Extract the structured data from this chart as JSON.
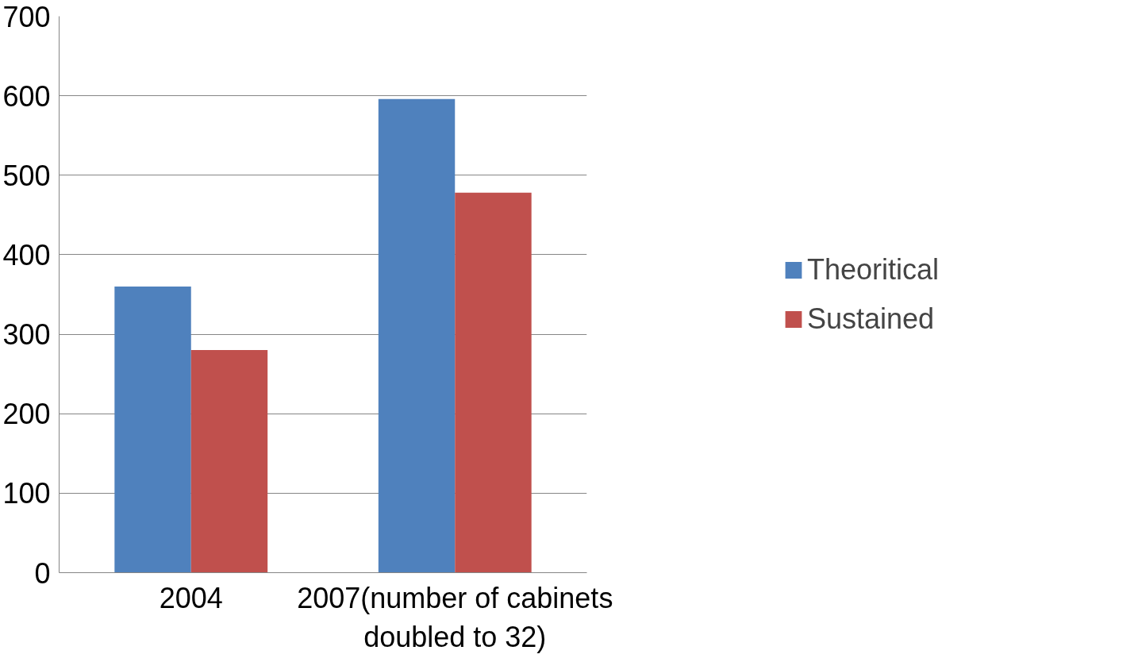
{
  "chart_data": {
    "type": "bar",
    "categories": [
      "2004",
      "2007(number of cabinets doubled to 32)"
    ],
    "series": [
      {
        "name": "Theoritical",
        "color": "#4f81bd",
        "values": [
          360,
          596
        ]
      },
      {
        "name": "Sustained",
        "color": "#c0504d",
        "values": [
          280,
          478
        ]
      }
    ],
    "ylim": [
      0,
      700
    ],
    "yticks": [
      0,
      100,
      200,
      300,
      400,
      500,
      600,
      700
    ],
    "grid": "y",
    "legend": "right"
  }
}
